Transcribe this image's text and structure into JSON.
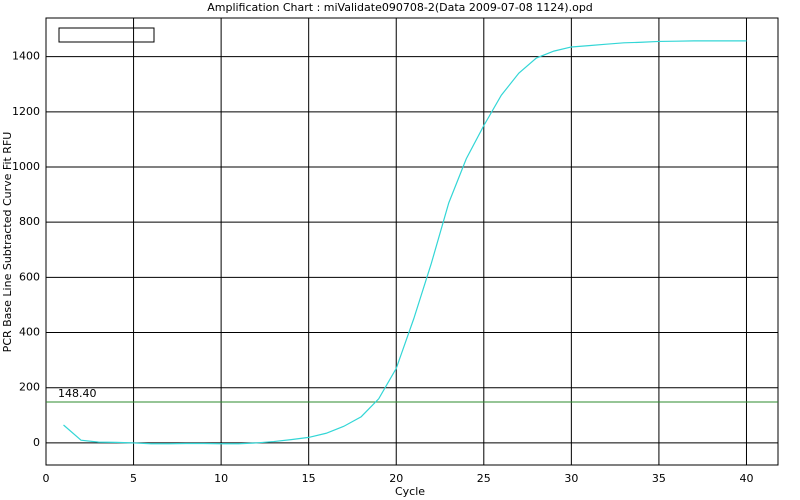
{
  "chart_data": {
    "type": "line",
    "title": "Amplification Chart : miValidate090708-2(Data 2009-07-08 1124).opd",
    "x_label": "Cycle",
    "y_label": "PCR Base Line Subtracted Curve Fit RFU",
    "x": [
      1,
      2,
      3,
      4,
      5,
      6,
      7,
      8,
      9,
      10,
      11,
      12,
      13,
      14,
      15,
      16,
      17,
      18,
      19,
      20,
      21,
      22,
      23,
      24,
      25,
      26,
      27,
      28,
      29,
      30,
      31,
      32,
      33,
      34,
      35,
      36,
      37,
      38,
      39,
      40
    ],
    "series": [
      {
        "color": "#33d6d6",
        "values": [
          65,
          10,
          3,
          2,
          0,
          -3,
          -3,
          -2,
          -2,
          -3,
          -3,
          0,
          5,
          12,
          20,
          35,
          60,
          95,
          160,
          270,
          450,
          650,
          870,
          1030,
          1150,
          1260,
          1340,
          1395,
          1420,
          1435,
          1440,
          1445,
          1450,
          1452,
          1455,
          1456,
          1457,
          1457,
          1457,
          1457
        ]
      }
    ],
    "threshold": {
      "value": 148.4,
      "label": "148.40",
      "color": "#2e8b2e"
    },
    "xlim": [
      0,
      41.8
    ],
    "ylim": [
      -80,
      1540
    ],
    "xticks": [
      0,
      5,
      10,
      15,
      20,
      25,
      30,
      35,
      40
    ],
    "yticks": [
      0,
      200,
      400,
      600,
      800,
      1000,
      1200,
      1400
    ],
    "grid": true
  }
}
